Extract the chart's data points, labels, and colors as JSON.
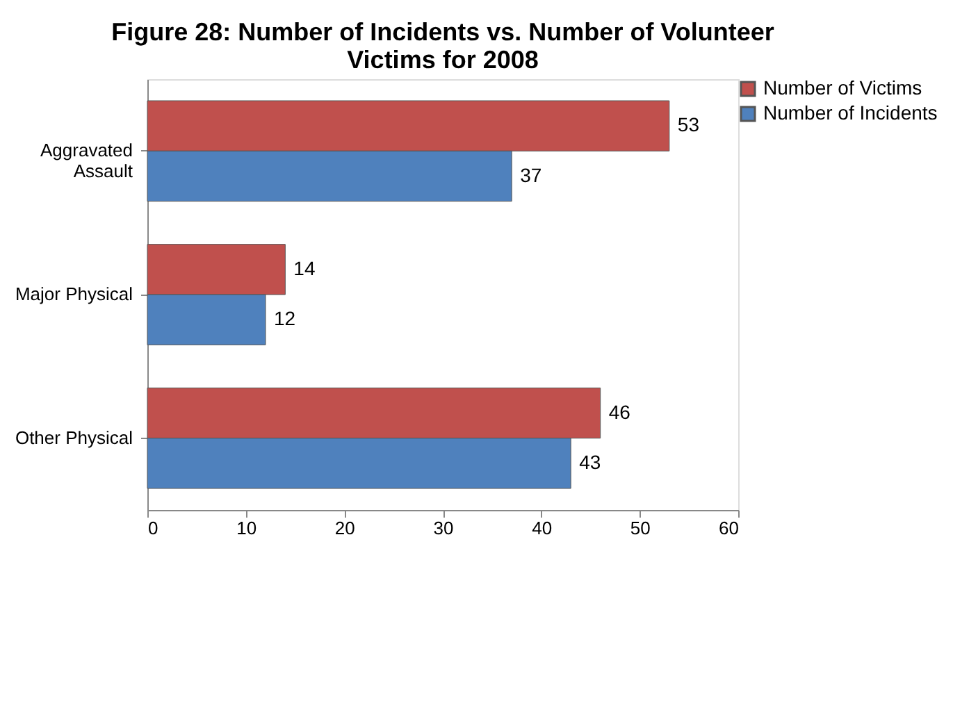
{
  "chart_data": {
    "type": "bar",
    "orientation": "horizontal",
    "title": "Figure 28:  Number of Incidents vs. Number of Volunteer Victims for 2008",
    "categories": [
      "Aggravated Assault",
      "Major Physical",
      "Other Physical"
    ],
    "series": [
      {
        "name": "Number of Victims",
        "color": "#c0504d",
        "values": [
          53,
          14,
          46
        ]
      },
      {
        "name": "Number of Incidents",
        "color": "#4f81bd",
        "values": [
          37,
          12,
          43
        ]
      }
    ],
    "xlim": [
      0,
      60
    ],
    "xticks": [
      0,
      10,
      20,
      30,
      40,
      50,
      60
    ],
    "grid": false,
    "legend": "right",
    "data_labels": true
  }
}
